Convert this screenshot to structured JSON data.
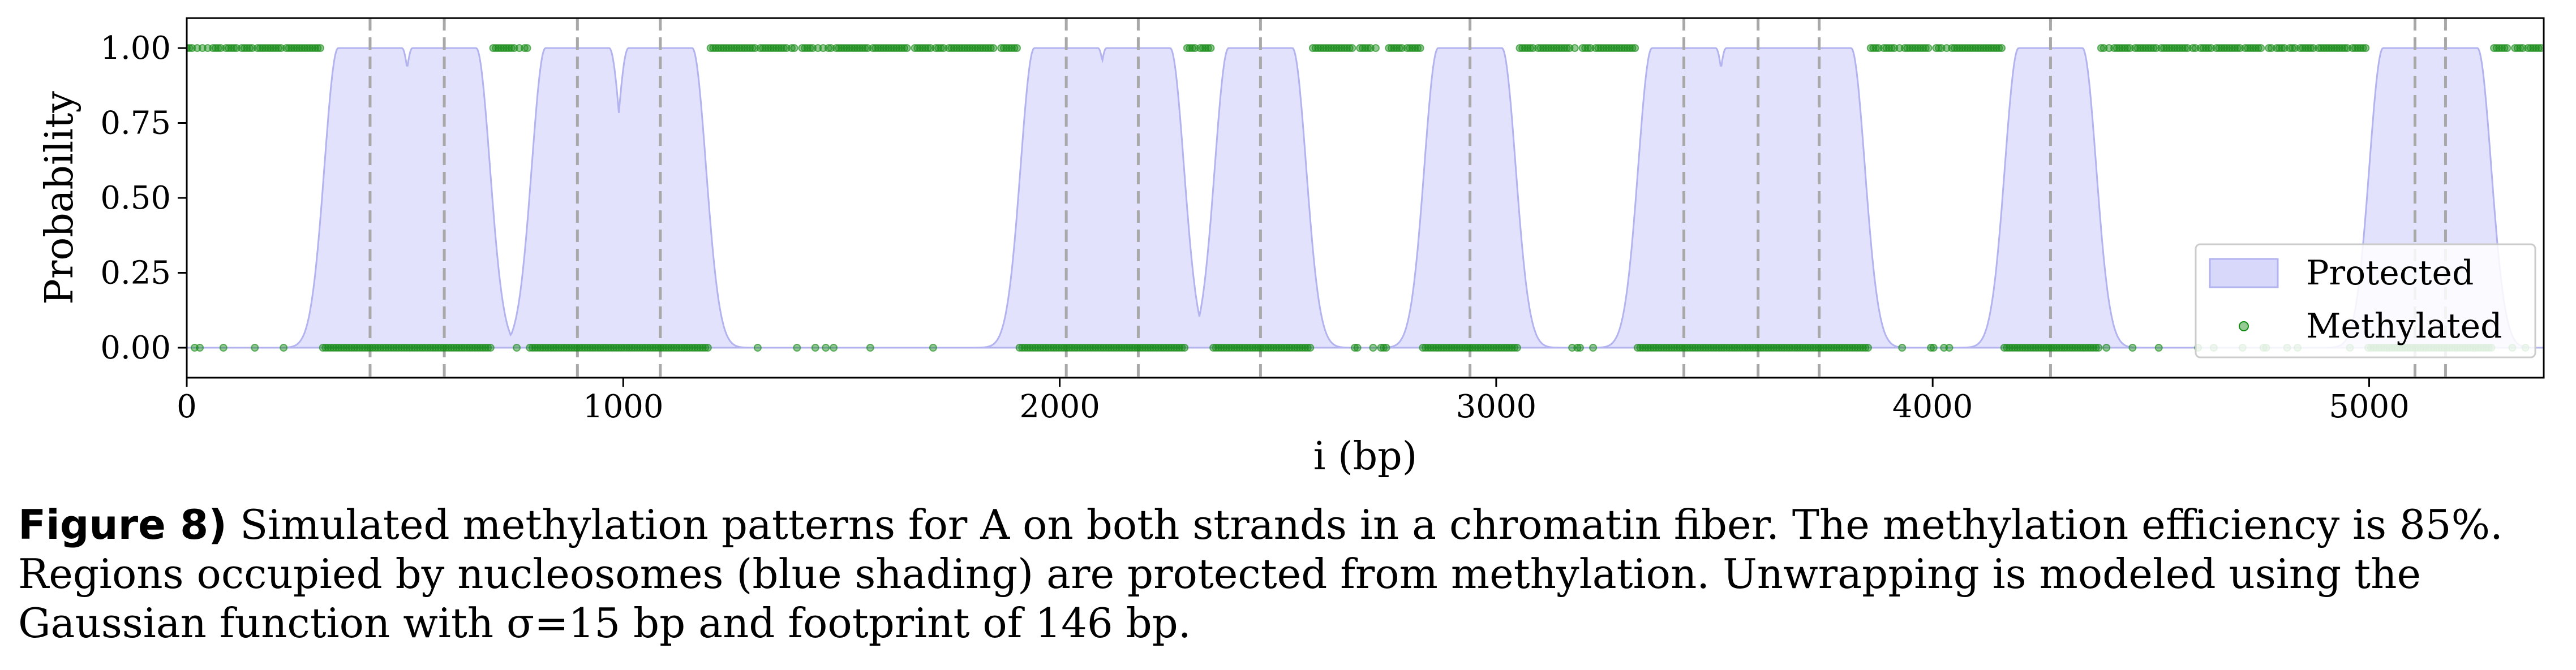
{
  "chart_data": {
    "type": "area",
    "xlabel": "i (bp)",
    "ylabel": "Probability",
    "xlim": [
      0,
      5400
    ],
    "ylim": [
      -0.1,
      1.1
    ],
    "xticks": [
      0,
      1000,
      2000,
      3000,
      4000,
      5000
    ],
    "yticks": [
      0.0,
      0.25,
      0.5,
      0.75,
      1.0
    ],
    "xtick_labels": [
      "0",
      "1000",
      "2000",
      "3000",
      "4000",
      "5000"
    ],
    "ytick_labels": [
      "0.00",
      "0.25",
      "0.50",
      "0.75",
      "1.00"
    ],
    "legend": {
      "placement": "lower-right",
      "entries": [
        "Protected",
        "Methylated"
      ]
    },
    "series": [
      {
        "name": "Protected",
        "kind": "filled-area",
        "color": "#b3b3f5",
        "nucleosome_centers": [
          420,
          590,
          895,
          1085,
          2015,
          2180,
          2460,
          2940,
          3430,
          3600,
          3740,
          4270,
          5105,
          5175
        ],
        "footprint_bp": 146,
        "sigma_bp": 15
      },
      {
        "name": "Methylated",
        "kind": "scatter",
        "color": "#138a13",
        "values": [
          0,
          1
        ],
        "description_points": "binary methylation state per position"
      }
    ],
    "vlines": [
      420,
      590,
      895,
      1085,
      2015,
      2180,
      2460,
      2940,
      3430,
      3600,
      3740,
      4270,
      5105,
      5175
    ]
  },
  "caption": {
    "label": "Figure 8)",
    "text": " Simulated methylation patterns for A on both strands in a chromatin fiber. The methylation efficiency is 85%. Regions occupied by nucleosomes (blue shading) are protected from methylation. Unwrapping is modeled using the Gaussian function with σ=15 bp and footprint of 146 bp."
  }
}
